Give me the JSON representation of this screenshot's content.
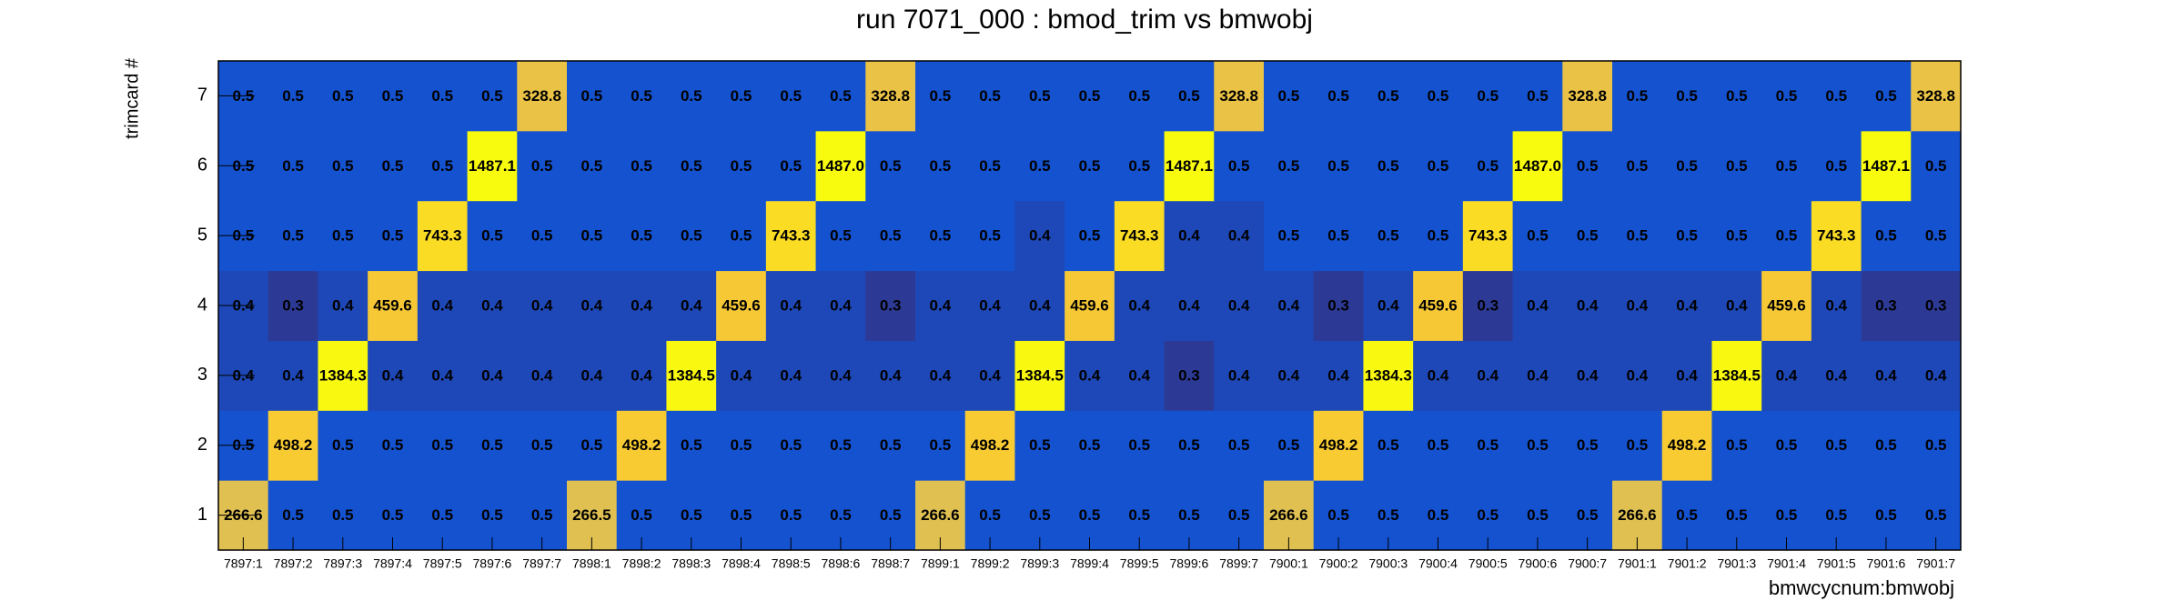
{
  "chart_data": {
    "type": "heatmap",
    "title": "run 7071_000 : bmod_trim vs bmwobj",
    "x_label": "bmwcycnum:bmwobj",
    "y_label": "trimcard #",
    "x": [
      "7897:1",
      "7897:2",
      "7897:3",
      "7897:4",
      "7897:5",
      "7897:6",
      "7897:7",
      "7898:1",
      "7898:2",
      "7898:3",
      "7898:4",
      "7898:5",
      "7898:6",
      "7898:7",
      "7899:1",
      "7899:2",
      "7899:3",
      "7899:4",
      "7899:5",
      "7899:6",
      "7899:7",
      "7900:1",
      "7900:2",
      "7900:3",
      "7900:4",
      "7900:5",
      "7900:6",
      "7900:7",
      "7901:1",
      "7901:2",
      "7901:3",
      "7901:4",
      "7901:5",
      "7901:6",
      "7901:7"
    ],
    "y": [
      "1",
      "2",
      "3",
      "4",
      "5",
      "6",
      "7"
    ],
    "values": [
      [
        266.6,
        0.5,
        0.5,
        0.5,
        0.5,
        0.5,
        0.5,
        266.5,
        0.5,
        0.5,
        0.5,
        0.5,
        0.5,
        0.5,
        266.6,
        0.5,
        0.5,
        0.5,
        0.5,
        0.5,
        0.5,
        266.6,
        0.5,
        0.5,
        0.5,
        0.5,
        0.5,
        0.5,
        266.6,
        0.5,
        0.5,
        0.5,
        0.5,
        0.5,
        0.5
      ],
      [
        0.5,
        498.2,
        0.5,
        0.5,
        0.5,
        0.5,
        0.5,
        0.5,
        498.2,
        0.5,
        0.5,
        0.5,
        0.5,
        0.5,
        0.5,
        498.2,
        0.5,
        0.5,
        0.5,
        0.5,
        0.5,
        0.5,
        498.2,
        0.5,
        0.5,
        0.5,
        0.5,
        0.5,
        0.5,
        498.2,
        0.5,
        0.5,
        0.5,
        0.5,
        0.5
      ],
      [
        0.4,
        0.4,
        1384.3,
        0.4,
        0.4,
        0.4,
        0.4,
        0.4,
        0.4,
        1384.5,
        0.4,
        0.4,
        0.4,
        0.4,
        0.4,
        0.4,
        1384.5,
        0.4,
        0.4,
        0.3,
        0.4,
        0.4,
        0.4,
        1384.3,
        0.4,
        0.4,
        0.4,
        0.4,
        0.4,
        0.4,
        1384.5,
        0.4,
        0.4,
        0.4,
        0.4
      ],
      [
        0.4,
        0.3,
        0.4,
        459.6,
        0.4,
        0.4,
        0.4,
        0.4,
        0.4,
        0.4,
        459.6,
        0.4,
        0.4,
        0.3,
        0.4,
        0.4,
        0.4,
        459.6,
        0.4,
        0.4,
        0.4,
        0.4,
        0.3,
        0.4,
        459.6,
        0.3,
        0.4,
        0.4,
        0.4,
        0.4,
        0.4,
        459.6,
        0.4,
        0.3,
        0.3
      ],
      [
        0.5,
        0.5,
        0.5,
        0.5,
        743.3,
        0.5,
        0.5,
        0.5,
        0.5,
        0.5,
        0.5,
        743.3,
        0.5,
        0.5,
        0.5,
        0.5,
        0.4,
        0.5,
        743.3,
        0.4,
        0.4,
        0.5,
        0.5,
        0.5,
        0.5,
        743.3,
        0.5,
        0.5,
        0.5,
        0.5,
        0.5,
        0.5,
        743.3,
        0.5,
        0.5
      ],
      [
        0.5,
        0.5,
        0.5,
        0.5,
        0.5,
        1487.1,
        0.5,
        0.5,
        0.5,
        0.5,
        0.5,
        0.5,
        1487,
        0.5,
        0.5,
        0.5,
        0.5,
        0.5,
        0.5,
        1487.1,
        0.5,
        0.5,
        0.5,
        0.5,
        0.5,
        0.5,
        1487,
        0.5,
        0.5,
        0.5,
        0.5,
        0.5,
        0.5,
        1487.1,
        0.5
      ],
      [
        0.5,
        0.5,
        0.5,
        0.5,
        0.5,
        0.5,
        328.8,
        0.5,
        0.5,
        0.5,
        0.5,
        0.5,
        0.5,
        328.8,
        0.5,
        0.5,
        0.5,
        0.5,
        0.5,
        0.5,
        328.8,
        0.5,
        0.5,
        0.5,
        0.5,
        0.5,
        0.5,
        328.8,
        0.5,
        0.5,
        0.5,
        0.5,
        0.5,
        0.5,
        328.8
      ]
    ],
    "value_labels": [
      [
        null,
        null,
        null,
        null,
        null,
        null,
        null,
        null,
        null,
        null,
        null,
        null,
        null,
        null,
        null,
        null,
        null,
        null,
        null,
        null,
        null,
        null,
        null,
        null,
        null,
        null,
        null,
        null,
        null,
        null,
        null,
        null,
        null,
        null,
        null
      ],
      [
        null,
        null,
        null,
        null,
        null,
        null,
        null,
        null,
        null,
        null,
        null,
        null,
        null,
        null,
        null,
        null,
        null,
        null,
        null,
        null,
        null,
        null,
        null,
        null,
        null,
        null,
        null,
        null,
        null,
        null,
        null,
        null,
        null,
        null,
        null
      ],
      [
        null,
        null,
        null,
        null,
        null,
        null,
        null,
        null,
        null,
        null,
        null,
        null,
        null,
        null,
        null,
        null,
        null,
        null,
        null,
        null,
        null,
        null,
        null,
        null,
        null,
        null,
        null,
        null,
        null,
        null,
        null,
        null,
        null,
        null,
        null
      ],
      [
        null,
        null,
        null,
        null,
        null,
        null,
        null,
        null,
        null,
        null,
        null,
        null,
        null,
        null,
        null,
        null,
        null,
        null,
        null,
        null,
        null,
        null,
        null,
        null,
        null,
        null,
        null,
        null,
        null,
        null,
        null,
        null,
        null,
        null,
        null
      ],
      [
        null,
        null,
        null,
        null,
        null,
        null,
        null,
        null,
        null,
        null,
        null,
        null,
        null,
        null,
        null,
        null,
        null,
        null,
        null,
        null,
        null,
        null,
        null,
        null,
        null,
        null,
        null,
        null,
        null,
        null,
        null,
        null,
        null,
        null,
        null
      ],
      [
        null,
        null,
        null,
        null,
        null,
        null,
        null,
        null,
        null,
        null,
        null,
        null,
        "1487.0",
        null,
        null,
        null,
        null,
        null,
        null,
        null,
        null,
        null,
        null,
        null,
        null,
        null,
        "1487.0",
        null,
        null,
        null,
        null,
        null,
        null,
        null,
        null
      ],
      [
        null,
        null,
        null,
        null,
        null,
        null,
        null,
        null,
        null,
        null,
        null,
        null,
        null,
        null,
        null,
        null,
        null,
        null,
        null,
        null,
        null,
        null,
        null,
        null,
        null,
        null,
        null,
        null,
        null,
        null,
        null,
        null,
        null,
        null,
        null
      ]
    ],
    "log_color_scale": true
  }
}
